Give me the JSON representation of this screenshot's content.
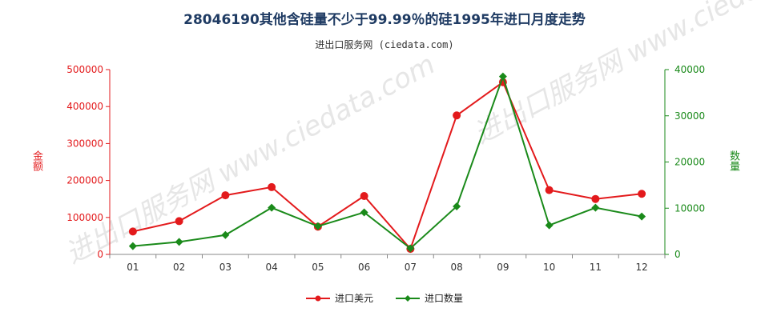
{
  "title": "28046190其他含硅量不少于99.99％的硅1995年进口月度走势",
  "subtitle": "进出口服务网 (ciedata.com)",
  "watermark": "进出口服务网 www.ciedata.com",
  "colors": {
    "amount": "#e31a1c",
    "quantity": "#1a8a1a",
    "title": "#1f3b63"
  },
  "chart_data": {
    "type": "line",
    "categories": [
      "01",
      "02",
      "03",
      "04",
      "05",
      "06",
      "07",
      "08",
      "09",
      "10",
      "11",
      "12"
    ],
    "y_left": {
      "label": "金额",
      "lim": [
        0,
        500000
      ],
      "ticks": [
        0,
        100000,
        200000,
        300000,
        400000,
        500000
      ],
      "tick_labels": [
        "0",
        "100000",
        "200000",
        "300000",
        "400000",
        "500000"
      ]
    },
    "y_right": {
      "label": "数量",
      "lim": [
        0,
        40000
      ],
      "ticks": [
        0,
        10000,
        20000,
        30000,
        40000
      ],
      "tick_labels": [
        "0",
        "10000",
        "20000",
        "30000",
        "40000"
      ]
    },
    "series": [
      {
        "name": "进口美元",
        "axis": "left",
        "color": "#e31a1c",
        "values": [
          62000,
          90000,
          160000,
          182000,
          75000,
          158000,
          15000,
          376000,
          466000,
          174000,
          150000,
          164000
        ]
      },
      {
        "name": "进口数量",
        "axis": "right",
        "color": "#1a8a1a",
        "values": [
          1800,
          2700,
          4200,
          10100,
          6100,
          9100,
          1300,
          10400,
          38500,
          6300,
          10100,
          8200
        ]
      }
    ],
    "legend_position": "bottom-center"
  },
  "legend": [
    {
      "label": "进口美元",
      "color": "#e31a1c"
    },
    {
      "label": "进口数量",
      "color": "#1a8a1a"
    }
  ]
}
